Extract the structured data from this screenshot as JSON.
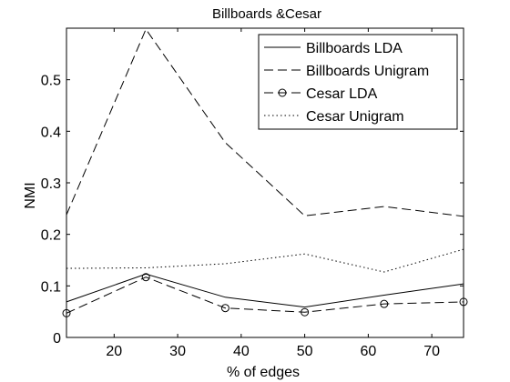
{
  "chart_data": {
    "type": "line",
    "title": "Billboards &Cesar",
    "xlabel": "% of edges",
    "ylabel": "NMI",
    "xlim": [
      12.5,
      75
    ],
    "ylim": [
      0,
      0.6
    ],
    "xticks": [
      20,
      30,
      40,
      50,
      60,
      70
    ],
    "yticks": [
      0,
      0.1,
      0.2,
      0.3,
      0.4,
      0.5
    ],
    "xtick_labels": [
      "20",
      "30",
      "40",
      "50",
      "60",
      "70"
    ],
    "ytick_labels": [
      "0",
      "0.1",
      "0.2",
      "0.3",
      "0.4",
      "0.5"
    ],
    "grid": false,
    "legend_position": "top-right",
    "x": [
      12.5,
      25,
      37.5,
      50,
      62.5,
      75
    ],
    "series": [
      {
        "name": "Billboards LDA",
        "style": "solid",
        "marker": "none",
        "values": [
          0.069,
          0.123,
          0.078,
          0.059,
          0.082,
          0.104
        ]
      },
      {
        "name": "Billboards Unigram",
        "style": "dashed",
        "marker": "none",
        "values": [
          0.238,
          0.598,
          0.378,
          0.236,
          0.254,
          0.235
        ]
      },
      {
        "name": "Cesar LDA",
        "style": "dashed",
        "marker": "circle",
        "values": [
          0.047,
          0.117,
          0.057,
          0.049,
          0.065,
          0.069
        ]
      },
      {
        "name": "Cesar Unigram",
        "style": "dotted",
        "marker": "none",
        "values": [
          0.134,
          0.135,
          0.143,
          0.162,
          0.127,
          0.171
        ]
      }
    ]
  }
}
